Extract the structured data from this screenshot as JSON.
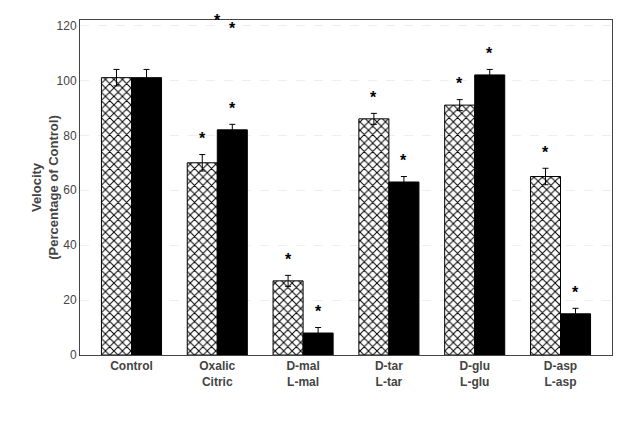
{
  "chart_data": {
    "type": "bar",
    "categories": [
      "Control",
      "Oxalic\nCitric",
      "D-mal\nL-mal",
      "D-tar\nL-tar",
      "D-glu\nL-glu",
      "D-asp\nL-asp"
    ],
    "series": [
      {
        "color": "white",
        "values": [
          101,
          70,
          27,
          86,
          91,
          65
        ],
        "errors": [
          3,
          3,
          2,
          2,
          2,
          3
        ]
      },
      {
        "color": "black",
        "values": [
          101,
          82,
          8,
          63,
          102,
          15
        ],
        "errors": [
          3,
          2,
          2,
          2,
          2,
          2
        ]
      }
    ],
    "y_label": "Velocity\n(Percentage of Control)",
    "annotations": [
      {
        "text": "*",
        "category": "Oxalic\nCitric",
        "series": 0,
        "y": 75
      },
      {
        "text": "*",
        "category": "D-mal\nL-mal",
        "series": 0,
        "y": 31
      },
      {
        "text": "*",
        "category": "D-tar\nL-tar",
        "series": 0,
        "y": 90
      },
      {
        "text": "*",
        "category": "D-glu\nL-glu",
        "series": 0,
        "y": 95
      },
      {
        "text": "*",
        "category": "D-asp\nL-asp",
        "series": 0,
        "y": 70
      },
      {
        "text": "*",
        "category": "Oxalic\nCitric",
        "series": 1,
        "y": 86
      },
      {
        "text": "*",
        "category": "D-mal\nL-mal",
        "series": 1,
        "y": 12
      },
      {
        "text": "*",
        "category": "D-tar\nL-tar",
        "series": 1,
        "y": 67
      },
      {
        "text": "*",
        "category": "D-glu\nL-glu",
        "series": 1,
        "y": 106
      },
      {
        "text": "*",
        "category": "D-asp\nL-asp",
        "series": 1,
        "y": 19
      },
      {
        "text": "*",
        "category": "Oxalic\nCitric",
        "series": 1,
        "y": 115
      },
      {
        "text": "*",
        "category": "Oxalic\nCitric",
        "y": 118
      }
    ],
    "ylim": [
      0,
      122
    ],
    "yticks": [
      0,
      20,
      40,
      60,
      80,
      100,
      120
    ],
    "grid": true
  }
}
